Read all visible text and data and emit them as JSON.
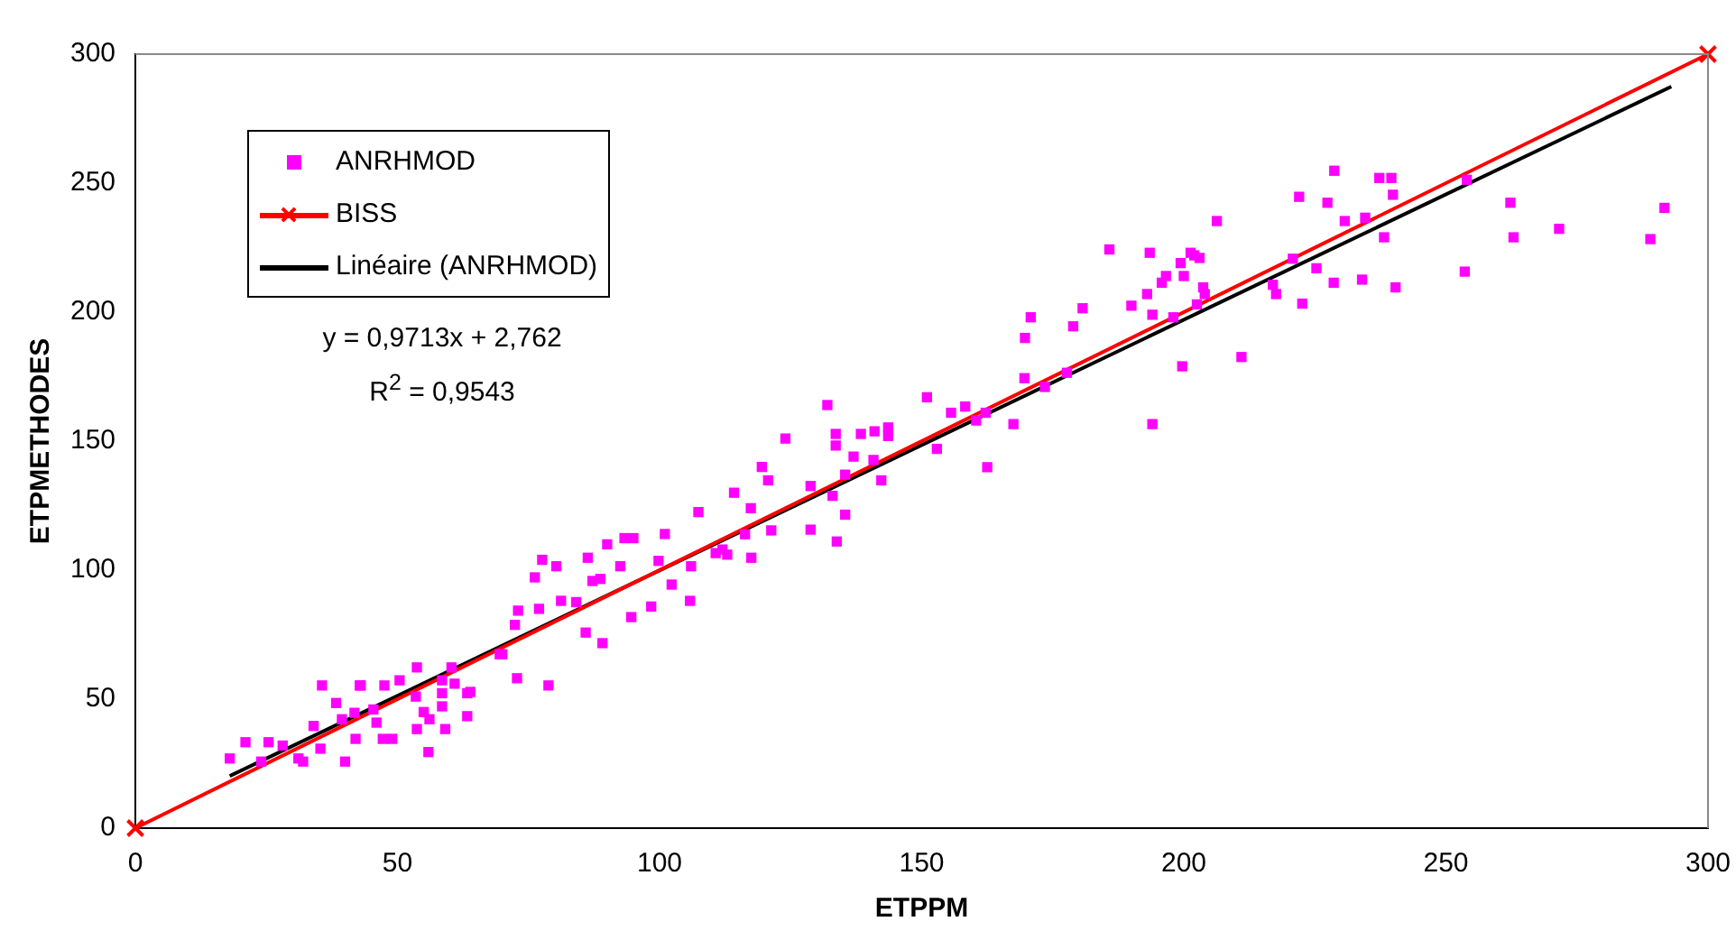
{
  "chart_data": {
    "type": "scatter",
    "xlabel": "ETPPM",
    "ylabel": "ETPMETHODES",
    "xlim": [
      0,
      300
    ],
    "xticks": [
      0,
      50,
      100,
      150,
      200,
      250,
      300
    ],
    "ylim": [
      0,
      300
    ],
    "yticks": [
      0,
      50,
      100,
      150,
      200,
      250,
      300
    ],
    "grid": false,
    "legend": "top left",
    "annotations": [
      "y = 0,9713x + 2,762",
      "R$^{2}$ = 0,9543"
    ],
    "series": [
      {
        "name": "ANRHMOD",
        "marker": "square",
        "color": "#ff00ff",
        "x": [
          18,
          21,
          25.4,
          28.1,
          31.1,
          32,
          40,
          24,
          34,
          35.3,
          35.6,
          38.3,
          39.4,
          41.8,
          42.8,
          42,
          45.4,
          46,
          47.2,
          47.5,
          49,
          53.5,
          55,
          56.1,
          53.7,
          59.1,
          55.9,
          58.5,
          63.3,
          63.3,
          58.5,
          53.7,
          60.3,
          50.4,
          43,
          63.9,
          60.9,
          58.5,
          69.5,
          70,
          72.8,
          78.8,
          72.4,
          73,
          77,
          84.1,
          81.2,
          85.9,
          89.1,
          94.6,
          98.4,
          105.8,
          102.3,
          87.2,
          88.7,
          92.5,
          99.8,
          106,
          110.7,
          112.9,
          117.5,
          76.2,
          80.3,
          77.6,
          86.3,
          90,
          93.3,
          95,
          101,
          107.4,
          112,
          116.3,
          121.3,
          117.4,
          114.2,
          120.7,
          119.5,
          133.8,
          128.8,
          135.4,
          133,
          128.8,
          142.3,
          135.4,
          140.8,
          137,
          143.6,
          143.6,
          141,
          138.4,
          133.6,
          133.6,
          124,
          132,
          152.9,
          162.2,
          160.4,
          158.3,
          155.6,
          151,
          162.5,
          167.5,
          177.7,
          173.5,
          169.6,
          169.7,
          178.9,
          180.7,
          170.8,
          194,
          199.7,
          198,
          194,
          190,
          193,
          202,
          200,
          196.6,
          199.4,
          193.5,
          185.8,
          201.3,
          203,
          195.8,
          203.7,
          204,
          202.5,
          211,
          206.3,
          217,
          217.6,
          220.8,
          222.6,
          225.3,
          228.6,
          234,
          240.4,
          253.6,
          222,
          227.4,
          228.7,
          237.3,
          239.6,
          239.9,
          230.7,
          234.6,
          238.2,
          254,
          262.3,
          262.9,
          271.6,
          291.7,
          289
        ],
        "values": [
          27,
          33.3,
          33.3,
          32,
          27,
          25.8,
          25.8,
          25.8,
          39.6,
          30.8,
          55.3,
          48.5,
          42.2,
          44.7,
          55.3,
          34.6,
          46,
          40.9,
          34.6,
          55.3,
          34.6,
          51,
          45,
          42.2,
          38.4,
          38.4,
          29.5,
          47.2,
          52.3,
          43.4,
          57.3,
          62.3,
          62.3,
          57.3,
          55.3,
          52.8,
          56,
          52.3,
          67.4,
          67.4,
          58.1,
          55.3,
          78.8,
          84.3,
          85,
          87.6,
          88.1,
          75.8,
          71.7,
          81.8,
          85.9,
          88.1,
          94.4,
          95.8,
          96.6,
          101.5,
          103.6,
          101.5,
          106.6,
          106,
          104.8,
          97.2,
          101.5,
          104,
          104.8,
          110,
          112.4,
          112.4,
          114,
          122.5,
          108,
          113.9,
          115.4,
          124,
          130,
          134.8,
          140,
          111.1,
          115.7,
          121.5,
          128.8,
          132.6,
          134.8,
          137,
          142.7,
          144,
          152,
          155.3,
          153.8,
          152.8,
          148.3,
          152.8,
          151,
          164,
          147,
          161,
          158,
          163.4,
          161,
          167,
          139.9,
          156.6,
          176.5,
          171,
          174.4,
          190,
          194.5,
          201.5,
          198,
          156.6,
          179,
          198,
          199,
          202.5,
          207,
          222,
          214,
          214,
          219,
          223,
          224.3,
          223,
          221,
          211.4,
          209.6,
          207,
          203,
          182.6,
          235.3,
          210.6,
          207,
          220.7,
          203.3,
          217,
          211.4,
          212.6,
          209.6,
          215.7,
          244.7,
          242.4,
          254.8,
          252,
          252,
          245.5,
          235.3,
          236.6,
          229,
          251.3,
          242.4,
          229,
          232.3,
          240.4,
          228.3
        ]
      },
      {
        "name": "BISS",
        "type": "line",
        "marker": "cross",
        "color": "#ff0000",
        "x": [
          0,
          300
        ],
        "values": [
          0,
          300
        ]
      },
      {
        "name": "Linéaire (ANRHMOD)",
        "type": "line",
        "marker": "none",
        "color": "#000000",
        "x": [
          18,
          293
        ],
        "values": [
          20.2,
          287.4
        ]
      }
    ]
  }
}
